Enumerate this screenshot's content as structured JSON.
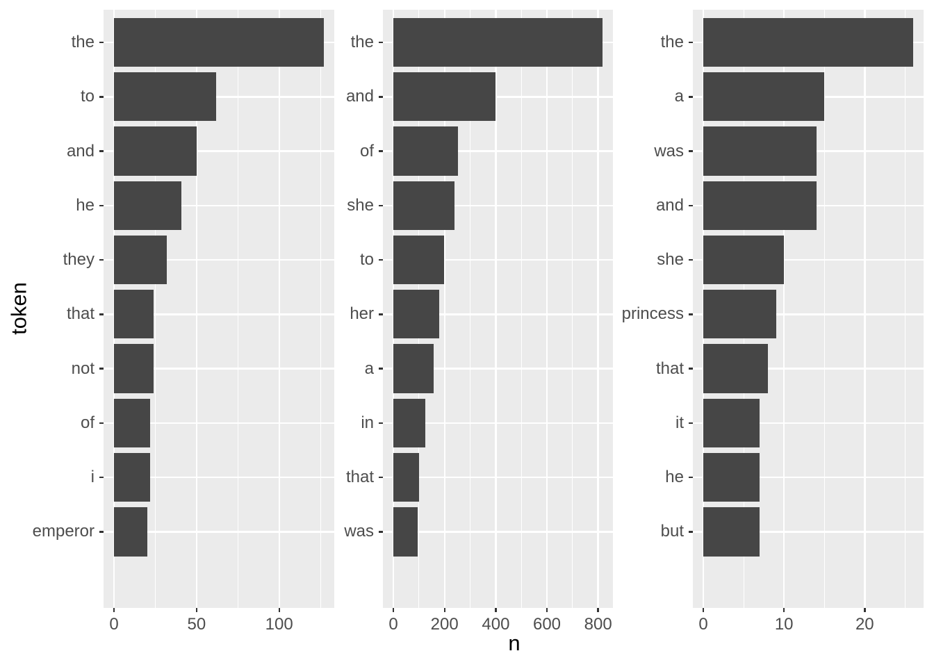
{
  "figure": {
    "x_axis_title": "n",
    "y_axis_title": "token",
    "colors": {
      "background": "#FFFFFF",
      "panel_background": "#EBEBEB",
      "grid_major": "#FFFFFF",
      "grid_minor": "#FFFFFF",
      "bar": "#464646",
      "tick_mark": "#333333",
      "tick_label": "#4D4D4D",
      "axis_title": "#000000"
    }
  },
  "chart_data": [
    {
      "type": "bar",
      "orientation": "horizontal",
      "title": "",
      "xlabel": "n",
      "ylabel": "token",
      "categories": [
        "the",
        "to",
        "and",
        "he",
        "they",
        "that",
        "not",
        "of",
        "i",
        "emperor"
      ],
      "values": [
        127,
        62,
        50,
        41,
        32,
        24,
        24,
        22,
        22,
        20
      ],
      "xlim": [
        0,
        139.7
      ],
      "x_ticks_major": {
        "values": [
          0,
          50,
          100
        ],
        "labels": [
          "0",
          "50",
          "100"
        ]
      },
      "x_ticks_minor": [
        25,
        75,
        125
      ],
      "grid": "on",
      "legend": "none"
    },
    {
      "type": "bar",
      "orientation": "horizontal",
      "title": "",
      "xlabel": "n",
      "ylabel": "token",
      "categories": [
        "the",
        "and",
        "of",
        "she",
        "to",
        "her",
        "a",
        "in",
        "that",
        "was"
      ],
      "values": [
        817,
        398,
        252,
        239,
        199,
        178,
        157,
        126,
        100,
        94
      ],
      "xlim": [
        0,
        898.7
      ],
      "x_ticks_major": {
        "values": [
          0,
          200,
          400,
          600,
          800
        ],
        "labels": [
          "0",
          "200",
          "400",
          "600",
          "800"
        ]
      },
      "x_ticks_minor": [
        100,
        300,
        500,
        700
      ],
      "grid": "on",
      "legend": "none"
    },
    {
      "type": "bar",
      "orientation": "horizontal",
      "title": "",
      "xlabel": "n",
      "ylabel": "token",
      "categories": [
        "the",
        "a",
        "was",
        "and",
        "she",
        "princess",
        "that",
        "it",
        "he",
        "but"
      ],
      "values": [
        26,
        15,
        14,
        14,
        10,
        9,
        8,
        7,
        7,
        7
      ],
      "xlim": [
        0,
        28.6
      ],
      "x_ticks_major": {
        "values": [
          0,
          10,
          20
        ],
        "labels": [
          "0",
          "10",
          "20"
        ]
      },
      "x_ticks_minor": [
        5,
        15,
        25
      ],
      "grid": "on",
      "legend": "none"
    }
  ]
}
